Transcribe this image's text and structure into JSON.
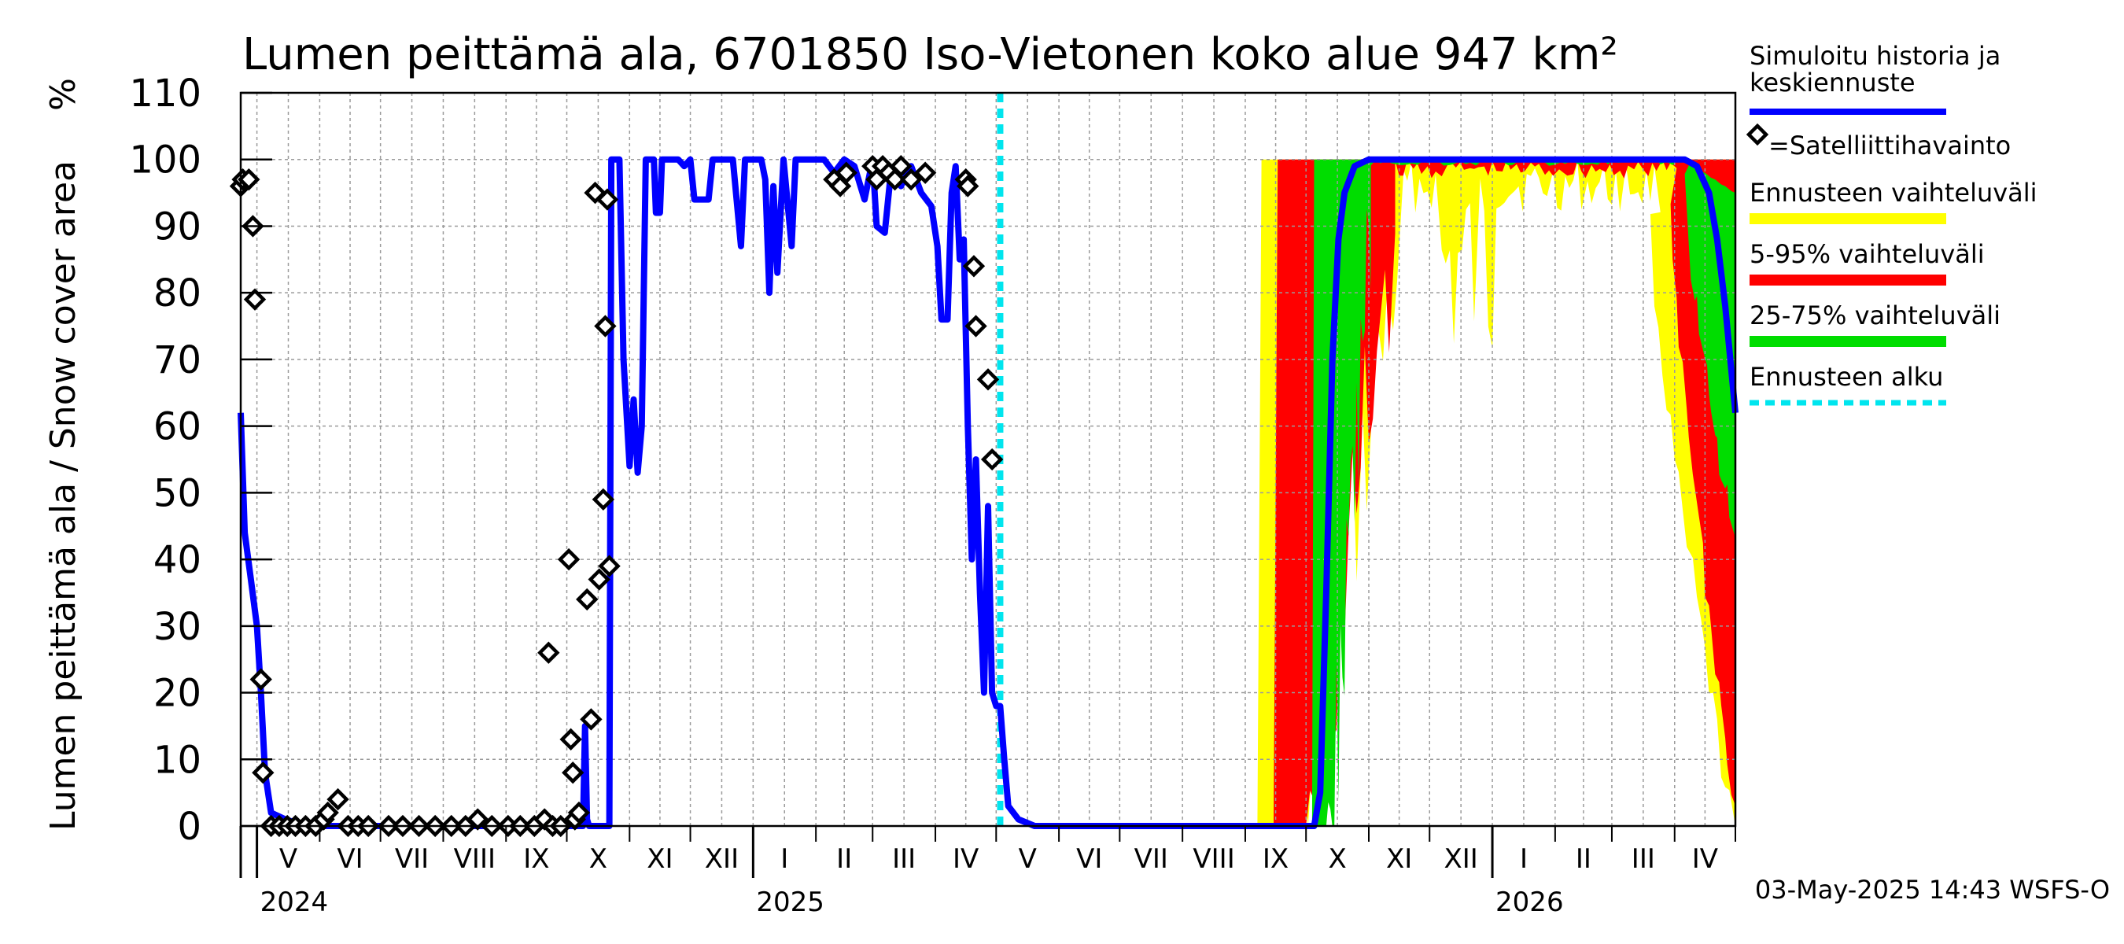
{
  "chart_data": {
    "type": "line",
    "title": "Lumen peittämä ala, 6701850 Iso-Vietonen koko alue 947 km²",
    "ylabel": "Lumen peittämä ala / Snow cover area",
    "ylabel_unit": "%",
    "ylim": [
      0,
      110
    ],
    "yticks": [
      0,
      10,
      20,
      30,
      40,
      50,
      60,
      70,
      80,
      90,
      100,
      110
    ],
    "xlim": [
      "2024-04-23",
      "2026-05-01"
    ],
    "grid": true,
    "legend_position": "right",
    "months": [
      {
        "label": "V",
        "start": "2024-05-01"
      },
      {
        "label": "VI",
        "start": "2024-06-01"
      },
      {
        "label": "VII",
        "start": "2024-07-01"
      },
      {
        "label": "VIII",
        "start": "2024-08-01"
      },
      {
        "label": "IX",
        "start": "2024-09-01"
      },
      {
        "label": "X",
        "start": "2024-10-01"
      },
      {
        "label": "XI",
        "start": "2024-11-01"
      },
      {
        "label": "XII",
        "start": "2024-12-01"
      },
      {
        "label": "I",
        "start": "2025-01-01"
      },
      {
        "label": "II",
        "start": "2025-02-01"
      },
      {
        "label": "III",
        "start": "2025-03-01"
      },
      {
        "label": "IV",
        "start": "2025-04-01"
      },
      {
        "label": "V",
        "start": "2025-05-01"
      },
      {
        "label": "VI",
        "start": "2025-06-01"
      },
      {
        "label": "VII",
        "start": "2025-07-01"
      },
      {
        "label": "VIII",
        "start": "2025-08-01"
      },
      {
        "label": "IX",
        "start": "2025-09-01"
      },
      {
        "label": "X",
        "start": "2025-10-01"
      },
      {
        "label": "XI",
        "start": "2025-11-01"
      },
      {
        "label": "XII",
        "start": "2025-12-01"
      },
      {
        "label": "I",
        "start": "2026-01-01"
      },
      {
        "label": "II",
        "start": "2026-02-01"
      },
      {
        "label": "III",
        "start": "2026-03-01"
      },
      {
        "label": "IV",
        "start": "2026-04-01"
      },
      {
        "label": "",
        "start": "2026-05-01"
      }
    ],
    "years": [
      {
        "label": "2024",
        "at": "2024-05-01"
      },
      {
        "label": "2025",
        "at": "2025-01-01"
      },
      {
        "label": "2026",
        "at": "2026-01-01"
      }
    ],
    "forecast_start": "2025-05-03",
    "series": [
      {
        "name": "Simuloitu historia ja keskiennuste",
        "color": "#0000ff",
        "points": [
          [
            "2024-04-23",
            62
          ],
          [
            "2024-04-25",
            44
          ],
          [
            "2024-04-28",
            37
          ],
          [
            "2024-05-01",
            30
          ],
          [
            "2024-05-03",
            20
          ],
          [
            "2024-05-05",
            8
          ],
          [
            "2024-05-08",
            2
          ],
          [
            "2024-05-15",
            1
          ],
          [
            "2024-05-25",
            0
          ],
          [
            "2024-10-09",
            0
          ],
          [
            "2024-10-10",
            15
          ],
          [
            "2024-10-11",
            1
          ],
          [
            "2024-10-12",
            0
          ],
          [
            "2024-10-18",
            0
          ],
          [
            "2024-10-22",
            0
          ],
          [
            "2024-10-23",
            100
          ],
          [
            "2024-10-27",
            100
          ],
          [
            "2024-10-29",
            70
          ],
          [
            "2024-11-01",
            54
          ],
          [
            "2024-11-03",
            64
          ],
          [
            "2024-11-05",
            53
          ],
          [
            "2024-11-07",
            60
          ],
          [
            "2024-11-09",
            100
          ],
          [
            "2024-11-13",
            100
          ],
          [
            "2024-11-14",
            92
          ],
          [
            "2024-11-16",
            92
          ],
          [
            "2024-11-17",
            100
          ],
          [
            "2024-11-25",
            100
          ],
          [
            "2024-11-28",
            99
          ],
          [
            "2024-12-01",
            100
          ],
          [
            "2024-12-03",
            94
          ],
          [
            "2024-12-10",
            94
          ],
          [
            "2024-12-12",
            100
          ],
          [
            "2024-12-22",
            100
          ],
          [
            "2024-12-26",
            87
          ],
          [
            "2024-12-28",
            100
          ],
          [
            "2025-01-05",
            100
          ],
          [
            "2025-01-07",
            97
          ],
          [
            "2025-01-09",
            80
          ],
          [
            "2025-01-11",
            96
          ],
          [
            "2025-01-13",
            83
          ],
          [
            "2025-01-16",
            100
          ],
          [
            "2025-01-20",
            87
          ],
          [
            "2025-01-22",
            100
          ],
          [
            "2025-02-05",
            100
          ],
          [
            "2025-02-10",
            98
          ],
          [
            "2025-02-15",
            100
          ],
          [
            "2025-02-20",
            99
          ],
          [
            "2025-02-25",
            94
          ],
          [
            "2025-03-01",
            100
          ],
          [
            "2025-03-03",
            90
          ],
          [
            "2025-03-07",
            89
          ],
          [
            "2025-03-10",
            98
          ],
          [
            "2025-03-15",
            96
          ],
          [
            "2025-03-20",
            99
          ],
          [
            "2025-03-25",
            95
          ],
          [
            "2025-03-30",
            93
          ],
          [
            "2025-04-02",
            87
          ],
          [
            "2025-04-04",
            76
          ],
          [
            "2025-04-07",
            76
          ],
          [
            "2025-04-09",
            95
          ],
          [
            "2025-04-11",
            99
          ],
          [
            "2025-04-13",
            85
          ],
          [
            "2025-04-15",
            88
          ],
          [
            "2025-04-17",
            60
          ],
          [
            "2025-04-19",
            40
          ],
          [
            "2025-04-21",
            55
          ],
          [
            "2025-04-23",
            35
          ],
          [
            "2025-04-25",
            20
          ],
          [
            "2025-04-27",
            48
          ],
          [
            "2025-04-29",
            20
          ],
          [
            "2025-05-01",
            18
          ],
          [
            "2025-05-03",
            18
          ],
          [
            "2025-05-05",
            10
          ],
          [
            "2025-05-07",
            3
          ],
          [
            "2025-05-12",
            1
          ],
          [
            "2025-05-20",
            0
          ],
          [
            "2025-10-05",
            0
          ],
          [
            "2025-10-08",
            5
          ],
          [
            "2025-10-11",
            35
          ],
          [
            "2025-10-14",
            70
          ],
          [
            "2025-10-17",
            88
          ],
          [
            "2025-10-20",
            95
          ],
          [
            "2025-10-25",
            99
          ],
          [
            "2025-11-01",
            100
          ],
          [
            "2026-04-06",
            100
          ],
          [
            "2026-04-12",
            99
          ],
          [
            "2026-04-18",
            95
          ],
          [
            "2026-04-22",
            88
          ],
          [
            "2026-04-26",
            78
          ],
          [
            "2026-05-01",
            62
          ]
        ]
      },
      {
        "name": "=Satelliittihavainto",
        "marker": "diamond",
        "points": [
          [
            "2024-04-23",
            96
          ],
          [
            "2024-04-24",
            97
          ],
          [
            "2024-04-27",
            97
          ],
          [
            "2024-04-29",
            90
          ],
          [
            "2024-04-30",
            79
          ],
          [
            "2024-05-03",
            22
          ],
          [
            "2024-05-04",
            8
          ],
          [
            "2024-05-08",
            0
          ],
          [
            "2024-05-12",
            0
          ],
          [
            "2024-05-16",
            0
          ],
          [
            "2024-05-20",
            0
          ],
          [
            "2024-05-25",
            0
          ],
          [
            "2024-05-30",
            0
          ],
          [
            "2024-06-03",
            1
          ],
          [
            "2024-06-05",
            2
          ],
          [
            "2024-06-10",
            4
          ],
          [
            "2024-06-15",
            0
          ],
          [
            "2024-06-20",
            0
          ],
          [
            "2024-06-25",
            0
          ],
          [
            "2024-07-05",
            0
          ],
          [
            "2024-07-12",
            0
          ],
          [
            "2024-07-20",
            0
          ],
          [
            "2024-07-28",
            0
          ],
          [
            "2024-08-05",
            0
          ],
          [
            "2024-08-12",
            0
          ],
          [
            "2024-08-18",
            1
          ],
          [
            "2024-08-25",
            0
          ],
          [
            "2024-09-02",
            0
          ],
          [
            "2024-09-08",
            0
          ],
          [
            "2024-09-15",
            0
          ],
          [
            "2024-09-20",
            1
          ],
          [
            "2024-09-24",
            0
          ],
          [
            "2024-09-28",
            0
          ],
          [
            "2024-09-22",
            26
          ],
          [
            "2024-10-02",
            40
          ],
          [
            "2024-10-03",
            13
          ],
          [
            "2024-10-04",
            8
          ],
          [
            "2024-10-05",
            1
          ],
          [
            "2024-10-07",
            2
          ],
          [
            "2024-10-11",
            34
          ],
          [
            "2024-10-13",
            16
          ],
          [
            "2024-10-15",
            95
          ],
          [
            "2024-10-17",
            37
          ],
          [
            "2024-10-19",
            49
          ],
          [
            "2024-10-20",
            75
          ],
          [
            "2024-10-21",
            94
          ],
          [
            "2024-10-22",
            39
          ],
          [
            "2025-02-10",
            97
          ],
          [
            "2025-02-13",
            96
          ],
          [
            "2025-02-16",
            98
          ],
          [
            "2025-03-01",
            99
          ],
          [
            "2025-03-03",
            97
          ],
          [
            "2025-03-06",
            99
          ],
          [
            "2025-03-09",
            98
          ],
          [
            "2025-03-12",
            97
          ],
          [
            "2025-03-15",
            99
          ],
          [
            "2025-03-20",
            97
          ],
          [
            "2025-03-27",
            98
          ],
          [
            "2025-04-16",
            97
          ],
          [
            "2025-04-17",
            96
          ],
          [
            "2025-04-20",
            84
          ],
          [
            "2025-04-21",
            75
          ],
          [
            "2025-04-27",
            67
          ],
          [
            "2025-04-29",
            55
          ]
        ]
      },
      {
        "name": "Ennusteen vaihteluväli",
        "color": "#ffff00",
        "band": {
          "rise": {
            "start": "2025-09-05",
            "end": "2025-11-18"
          },
          "plateau": {
            "from": "2025-11-18",
            "to": "2026-03-25",
            "lower": 92,
            "upper": 100
          },
          "fall": {
            "start": "2026-03-20",
            "end": "2026-05-01",
            "lower_end": 2,
            "upper_end": 100
          }
        }
      },
      {
        "name": "5-95% vaihteluväli",
        "color": "#ff0000",
        "band": {
          "rise": {
            "start": "2025-09-13",
            "end": "2025-11-14"
          },
          "plateau": {
            "from": "2025-11-14",
            "to": "2026-04-02",
            "lower": 97,
            "upper": 100
          },
          "fall": {
            "start": "2026-03-30",
            "end": "2026-05-01",
            "lower_end": 5,
            "upper_end": 100
          }
        }
      },
      {
        "name": "25-75% vaihteluväli",
        "color": "#00dd00",
        "band": {
          "rise": {
            "start": "2025-10-04",
            "end": "2025-11-02"
          },
          "plateau": {
            "from": "2025-11-02",
            "to": "2026-04-08",
            "lower": 99,
            "upper": 100
          },
          "fall": {
            "start": "2026-04-06",
            "end": "2026-05-01",
            "lower_end": 45,
            "upper_end": 95
          }
        }
      },
      {
        "name": "Ennusteen alku",
        "color": "#00e5ee",
        "style": "dashed-vertical"
      }
    ]
  },
  "footer": {
    "timestamp": "03-May-2025 14:43 WSFS-O"
  }
}
